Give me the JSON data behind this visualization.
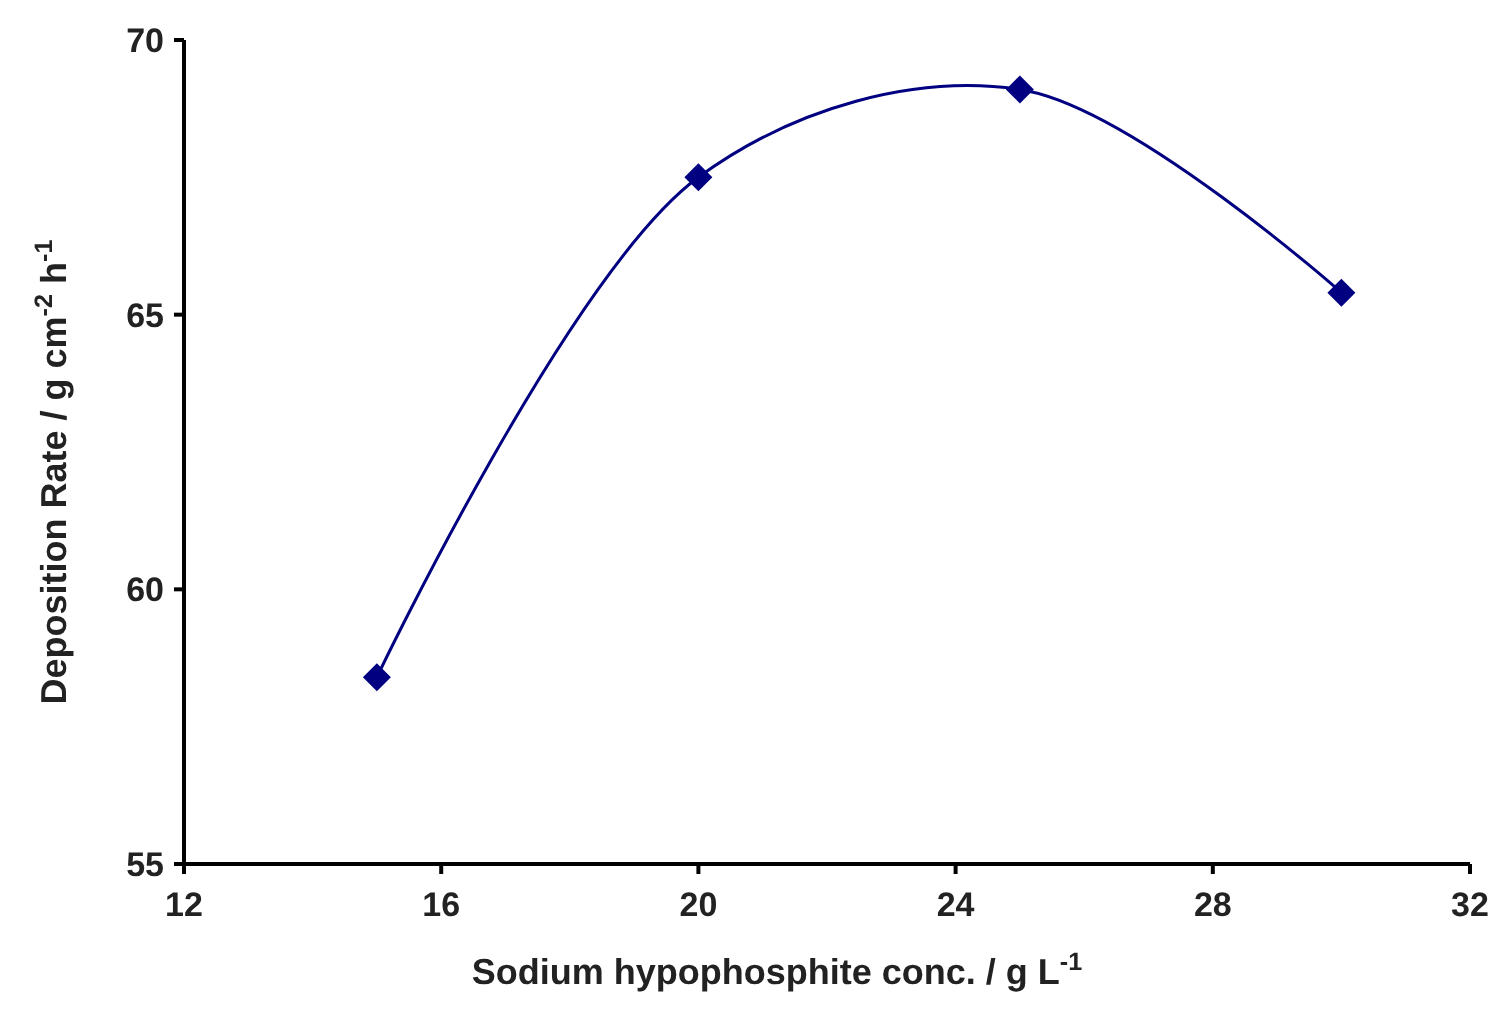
{
  "chart_data": {
    "type": "line",
    "xlabel": "Sodium hypophosphite conc. / g L$^{-1}$",
    "ylabel": "Deposition Rate / g cm$^{-2}$ h$^{-1}$",
    "x": [
      15,
      20,
      25,
      30
    ],
    "series": [
      {
        "color": "#000080",
        "values": [
          58.4,
          67.5,
          69.1,
          65.4
        ]
      }
    ],
    "xlim": [
      12,
      32
    ],
    "xticks": [
      12,
      16,
      20,
      24,
      28,
      32
    ],
    "ylim": [
      55,
      70
    ],
    "yticks": [
      55,
      60,
      65,
      70
    ],
    "grid": false,
    "marker": "diamond",
    "line_style": "solid"
  }
}
